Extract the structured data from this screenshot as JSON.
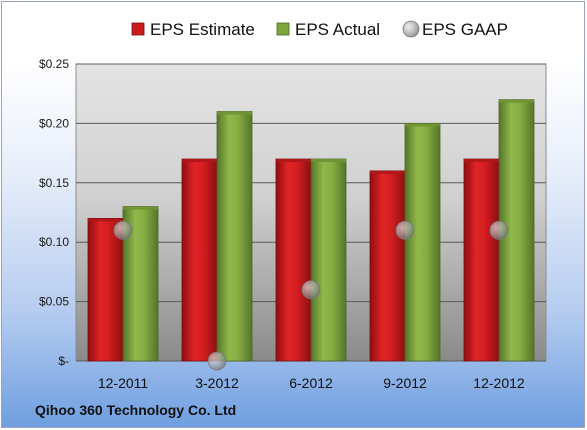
{
  "company": "Qihoo 360 Technology Co. Ltd",
  "colors": {
    "estimate": "#cc1b1e",
    "actual": "#7fa63a",
    "gaap": "#a9a9a9",
    "plot_top": "#e4e4e4",
    "plot_bottom": "#8a8a8a",
    "grid": "#555555"
  },
  "chart_data": {
    "type": "bar",
    "title": "",
    "xlabel": "",
    "ylabel": "",
    "categories": [
      "12-2011",
      "3-2012",
      "6-2012",
      "9-2012",
      "12-2012"
    ],
    "series": [
      {
        "name": "EPS Estimate",
        "kind": "bar",
        "values": [
          0.12,
          0.17,
          0.17,
          0.16,
          0.17
        ]
      },
      {
        "name": "EPS Actual",
        "kind": "bar",
        "values": [
          0.13,
          0.21,
          0.17,
          0.2,
          0.22
        ]
      },
      {
        "name": "EPS GAAP",
        "kind": "marker",
        "values": [
          0.11,
          0.0,
          0.06,
          0.11,
          0.11
        ]
      }
    ],
    "ylim": [
      0,
      0.25
    ],
    "yticks": [
      0,
      0.05,
      0.1,
      0.15,
      0.2,
      0.25
    ],
    "ytick_labels": [
      "$-",
      "$0.05",
      "$0.10",
      "$0.15",
      "$0.20",
      "$0.25"
    ],
    "grid": true,
    "legend_position": "top"
  }
}
